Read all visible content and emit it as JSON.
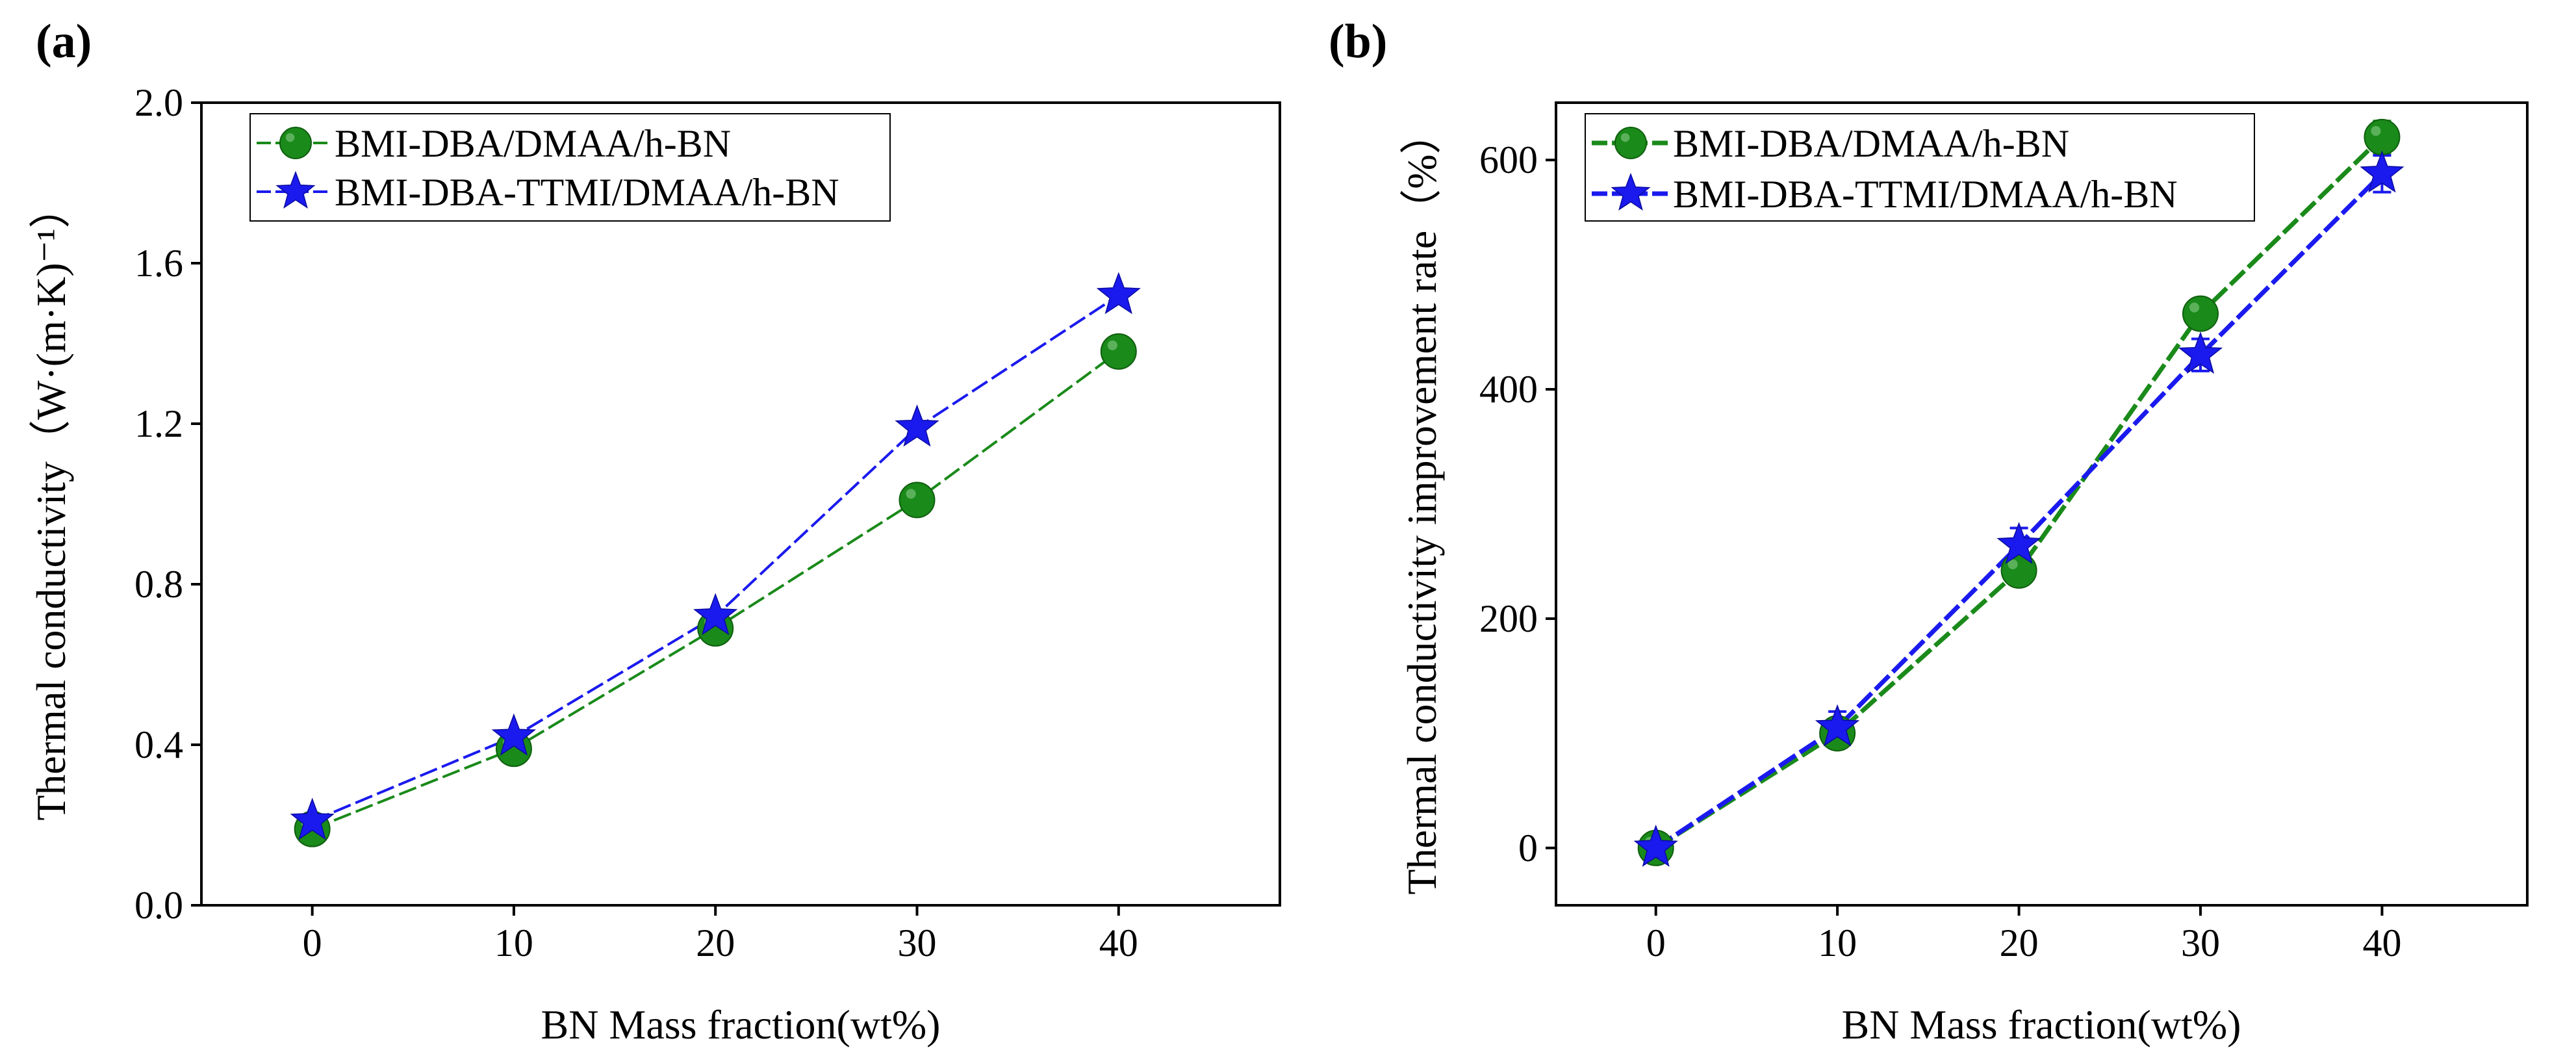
{
  "chart_data": [
    {
      "panel_label": "(a)",
      "type": "line",
      "title": "",
      "xlabel": "BN Mass fraction(wt%)",
      "ylabel": "Thermal conductivity（W·(m·K)⁻¹）",
      "x": [
        0,
        10,
        20,
        30,
        40
      ],
      "xlim": [
        -5.5,
        48
      ],
      "ylim": [
        0.0,
        2.0
      ],
      "xticks": [
        0,
        10,
        20,
        30,
        40
      ],
      "xtick_labels": [
        "0",
        "10",
        "20",
        "30",
        "40"
      ],
      "yticks": [
        0.0,
        0.4,
        0.8,
        1.2,
        1.6,
        2.0
      ],
      "ytick_labels": [
        "0.0",
        "0.4",
        "0.8",
        "1.2",
        "1.6",
        "2.0"
      ],
      "grid": false,
      "legend_position": "top-left",
      "series": [
        {
          "name": "BMI-DBA/DMAA/h-BN",
          "marker": "circle",
          "color": "#1a8a1a",
          "values": [
            0.19,
            0.39,
            0.69,
            1.01,
            1.38
          ],
          "errors": [
            0,
            0,
            0,
            0,
            0
          ]
        },
        {
          "name": "BMI-DBA-TTMI/DMAA/h-BN",
          "marker": "star",
          "color": "#1a1aee",
          "values": [
            0.21,
            0.42,
            0.72,
            1.19,
            1.52
          ],
          "errors": [
            0,
            0,
            0,
            0,
            0
          ]
        }
      ]
    },
    {
      "panel_label": "(b)",
      "type": "line",
      "title": "",
      "xlabel": "BN Mass fraction(wt%)",
      "ylabel": "Thermal conductivity improvement rate（%）",
      "x": [
        0,
        10,
        20,
        30,
        40
      ],
      "xlim": [
        -5.5,
        48
      ],
      "ylim": [
        -50,
        650
      ],
      "xticks": [
        0,
        10,
        20,
        30,
        40
      ],
      "xtick_labels": [
        "0",
        "10",
        "20",
        "30",
        "40"
      ],
      "yticks": [
        0,
        200,
        400,
        600
      ],
      "ytick_labels": [
        "0",
        "200",
        "400",
        "600"
      ],
      "grid": false,
      "legend_position": "top-left",
      "series": [
        {
          "name": "BMI-DBA/DMAA/h-BN",
          "marker": "circle",
          "color": "#1a8a1a",
          "values": [
            0,
            100,
            242,
            466,
            620
          ],
          "errors": [
            0,
            10,
            12,
            12,
            14
          ]
        },
        {
          "name": "BMI-DBA-TTMI/DMAA/h-BN",
          "marker": "star",
          "color": "#1a1aee",
          "values": [
            0,
            105,
            264,
            430,
            588
          ],
          "errors": [
            0,
            14,
            15,
            14,
            16
          ]
        }
      ]
    }
  ]
}
